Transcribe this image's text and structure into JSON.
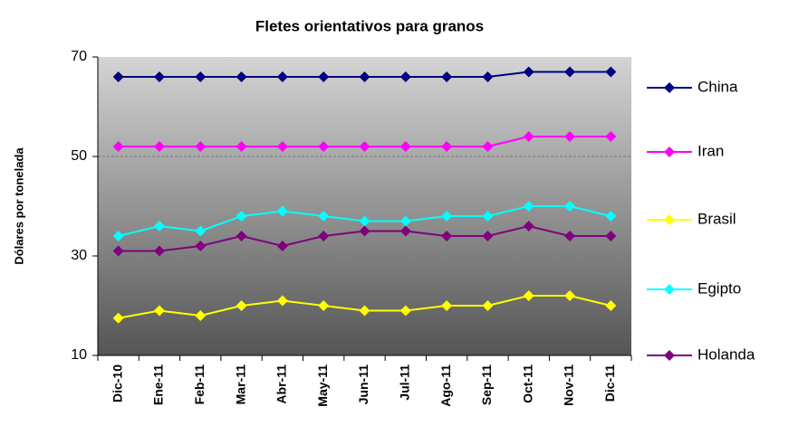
{
  "chart_data": {
    "type": "line",
    "title": "Fletes orientativos para granos",
    "y_label": "Dólares por tonelada",
    "categories": [
      "Dic-10",
      "Ene-11",
      "Feb-11",
      "Mar-11",
      "Abr-11",
      "May-11",
      "Jun-11",
      "Jul-11",
      "Ago-11",
      "Sep-11",
      "Oct-11",
      "Nov-11",
      "Dic-11"
    ],
    "series": [
      {
        "name": "China",
        "color": "#000080",
        "values": [
          66,
          66,
          66,
          66,
          66,
          66,
          66,
          66,
          66,
          66,
          67,
          67,
          67
        ]
      },
      {
        "name": "Iran",
        "color": "#ff00ff",
        "values": [
          52,
          52,
          52,
          52,
          52,
          52,
          52,
          52,
          52,
          52,
          54,
          54,
          54
        ]
      },
      {
        "name": "Brasil",
        "color": "#ffff00",
        "values": [
          17.5,
          19,
          18,
          20,
          21,
          20,
          19,
          19,
          20,
          20,
          22,
          22,
          20
        ]
      },
      {
        "name": "Egipto",
        "color": "#00ffff",
        "values": [
          34,
          36,
          35,
          38,
          39,
          38,
          37,
          37,
          38,
          38,
          40,
          40,
          38
        ]
      },
      {
        "name": "Holanda",
        "color": "#800080",
        "values": [
          31,
          31,
          32,
          34,
          32,
          34,
          35,
          35,
          34,
          34,
          36,
          34,
          34
        ]
      }
    ],
    "ylim": [
      10,
      70
    ],
    "yticks": [
      10,
      30,
      50,
      70
    ],
    "grid": true,
    "legend": "right"
  }
}
